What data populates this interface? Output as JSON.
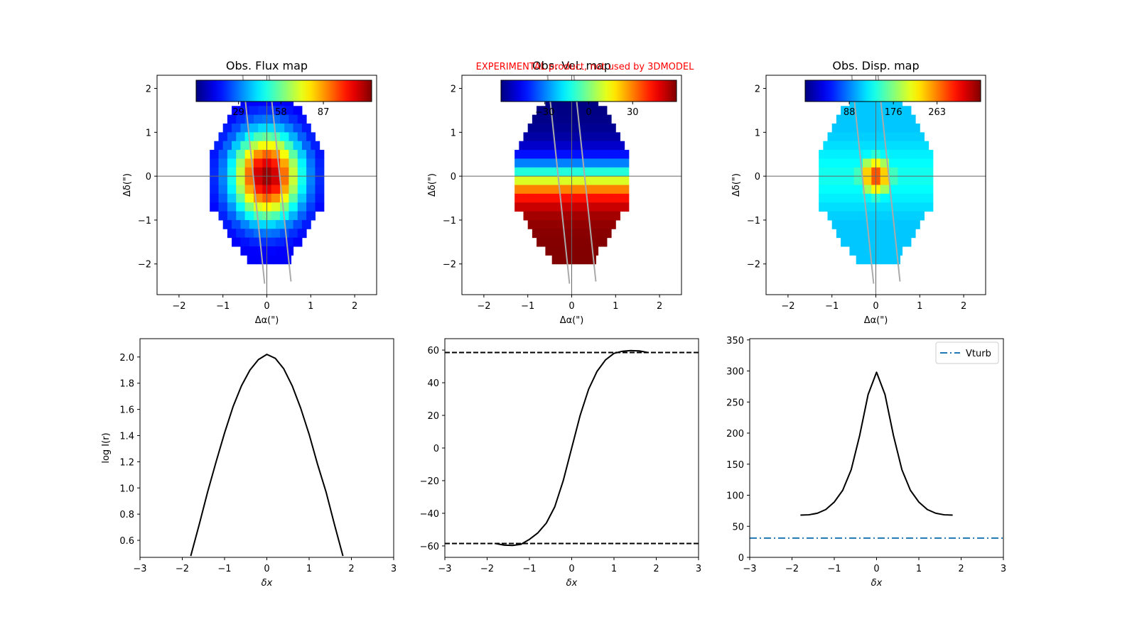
{
  "figure": {
    "warning": "EXPERIMENTAL product, not used by 3DMODEL"
  },
  "chart_data": [
    {
      "type": "heatmap",
      "title": "Obs. Flux map",
      "xlabel": "Δα(\")",
      "ylabel": "Δδ(\")",
      "xlim": [
        -2.5,
        2.5
      ],
      "ylim": [
        -2.7,
        2.3
      ],
      "xticks": [
        -2,
        -1,
        0,
        1,
        2
      ],
      "yticks": [
        -2,
        -1,
        0,
        1,
        2
      ],
      "cbar": {
        "ticks": [
          29,
          58,
          87
        ],
        "range": [
          0,
          120
        ],
        "colormap": "jet",
        "position": "top"
      },
      "map": {
        "model": "flux",
        "center": [
          0,
          0
        ],
        "peak": 120,
        "sx": 0.55,
        "sy": 0.7,
        "floor": 10
      },
      "slit": [
        [
          [
            -0.55,
            2.3
          ],
          [
            -0.05,
            -2.45
          ]
        ],
        [
          [
            0.05,
            2.3
          ],
          [
            0.55,
            -2.4
          ]
        ]
      ]
    },
    {
      "type": "heatmap",
      "title": "Obs. Vel. map",
      "xlabel": "Δα(\")",
      "ylabel": "Δδ(\")",
      "xlim": [
        -2.5,
        2.5
      ],
      "ylim": [
        -2.7,
        2.3
      ],
      "xticks": [
        -2,
        -1,
        0,
        1,
        2
      ],
      "yticks": [
        -2,
        -1,
        0,
        1,
        2
      ],
      "cbar": {
        "ticks": [
          -30,
          0,
          30
        ],
        "range": [
          -60,
          60
        ],
        "colormap": "jet",
        "position": "top"
      },
      "map": {
        "model": "velocity",
        "center": [
          0,
          0
        ],
        "vmax": 60,
        "scale": 0.55
      },
      "slit": [
        [
          [
            -0.55,
            2.3
          ],
          [
            -0.05,
            -2.45
          ]
        ],
        [
          [
            0.05,
            2.3
          ],
          [
            0.55,
            -2.4
          ]
        ]
      ]
    },
    {
      "type": "heatmap",
      "title": "Obs. Disp. map",
      "xlabel": "Δα(\")",
      "ylabel": "Δδ(\")",
      "xlim": [
        -2.5,
        2.5
      ],
      "ylim": [
        -2.7,
        2.3
      ],
      "xticks": [
        -2,
        -1,
        0,
        1,
        2
      ],
      "yticks": [
        -2,
        -1,
        0,
        1,
        2
      ],
      "cbar": {
        "ticks": [
          88,
          176,
          263
        ],
        "range": [
          0,
          350
        ],
        "colormap": "jet",
        "position": "top"
      },
      "map": {
        "model": "dispersion",
        "center": [
          0,
          0
        ],
        "base": 70,
        "peak": 300,
        "sx": 0.3,
        "sy": 0.35
      },
      "slit": [
        [
          [
            -0.55,
            2.3
          ],
          [
            -0.05,
            -2.45
          ]
        ],
        [
          [
            0.05,
            2.3
          ],
          [
            0.55,
            -2.4
          ]
        ]
      ]
    },
    {
      "type": "line",
      "xlabel": "δx",
      "ylabel": "log I(r)",
      "xlim": [
        -3,
        3
      ],
      "ylim": [
        0.47,
        2.14
      ],
      "xticks": [
        -3,
        -2,
        -1,
        0,
        1,
        2,
        3
      ],
      "yticks": [
        0.6,
        0.8,
        1.0,
        1.2,
        1.4,
        1.6,
        1.8,
        2.0
      ],
      "series": [
        {
          "color": "#000000",
          "dash": "solid",
          "x": [
            -1.8,
            -1.6,
            -1.4,
            -1.2,
            -1.0,
            -0.8,
            -0.6,
            -0.4,
            -0.2,
            0.0,
            0.2,
            0.4,
            0.6,
            0.8,
            1.0,
            1.2,
            1.4,
            1.6,
            1.8
          ],
          "y": [
            0.48,
            0.72,
            0.97,
            1.2,
            1.42,
            1.62,
            1.78,
            1.9,
            1.98,
            2.02,
            1.99,
            1.91,
            1.78,
            1.61,
            1.41,
            1.18,
            0.97,
            0.72,
            0.48
          ]
        }
      ]
    },
    {
      "type": "line",
      "xlabel": "δx",
      "ylabel": "",
      "xlim": [
        -3,
        3
      ],
      "ylim": [
        -67,
        67
      ],
      "xticks": [
        -3,
        -2,
        -1,
        0,
        1,
        2,
        3
      ],
      "yticks": [
        -60,
        -40,
        -20,
        0,
        20,
        40,
        60
      ],
      "series": [
        {
          "color": "#000000",
          "dash": "solid",
          "x": [
            -1.8,
            -1.6,
            -1.4,
            -1.2,
            -1.0,
            -0.8,
            -0.6,
            -0.4,
            -0.2,
            0.0,
            0.2,
            0.4,
            0.6,
            0.8,
            1.0,
            1.2,
            1.4,
            1.6,
            1.8
          ],
          "y": [
            -58.5,
            -59.5,
            -59.7,
            -59,
            -56,
            -52,
            -46,
            -36,
            -20,
            0,
            20,
            36,
            47,
            54,
            58,
            59.3,
            59.7,
            59.5,
            58.5
          ]
        },
        {
          "color": "#000000",
          "dash": "dashed",
          "x": [
            -3,
            3
          ],
          "y": [
            58.5,
            58.5
          ]
        },
        {
          "color": "#000000",
          "dash": "dashed",
          "x": [
            -3,
            3
          ],
          "y": [
            -58.5,
            -58.5
          ]
        }
      ]
    },
    {
      "type": "line",
      "xlabel": "δx",
      "ylabel": "",
      "xlim": [
        -3,
        3
      ],
      "ylim": [
        0,
        352
      ],
      "xticks": [
        -3,
        -2,
        -1,
        0,
        1,
        2,
        3
      ],
      "yticks": [
        0,
        50,
        100,
        150,
        200,
        250,
        300,
        350
      ],
      "legend": {
        "position": "top-right",
        "entries": [
          "Vturb"
        ]
      },
      "series": [
        {
          "color": "#000000",
          "dash": "solid",
          "x": [
            -1.8,
            -1.6,
            -1.4,
            -1.2,
            -1.0,
            -0.8,
            -0.6,
            -0.4,
            -0.2,
            0.0,
            0.2,
            0.4,
            0.6,
            0.8,
            1.0,
            1.2,
            1.4,
            1.6,
            1.8
          ],
          "y": [
            68,
            68.5,
            71,
            77,
            89,
            108,
            141,
            196,
            262,
            298,
            262,
            196,
            141,
            108,
            89,
            77,
            71,
            68.5,
            68
          ]
        },
        {
          "name": "Vturb",
          "color": "#1f77b4",
          "dash": "dashdot",
          "x": [
            -3,
            3
          ],
          "y": [
            31,
            31
          ]
        }
      ]
    }
  ]
}
